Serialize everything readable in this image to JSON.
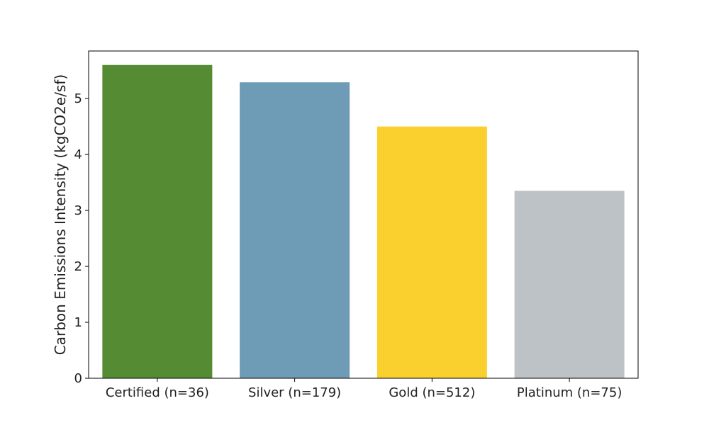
{
  "chart_data": {
    "type": "bar",
    "title": "",
    "xlabel": "",
    "ylabel": "Carbon Emissions Intensity (kgCO2e/sf)",
    "categories": [
      "Certified (n=36)",
      "Silver (n=179)",
      "Gold (n=512)",
      "Platinum (n=75)"
    ],
    "values": [
      5.6,
      5.29,
      4.5,
      3.35
    ],
    "colors": [
      "#548b33",
      "#6e9bb6",
      "#f9d02e",
      "#bcc2c5"
    ],
    "ylim": [
      0,
      5.85
    ],
    "yticks": [
      0,
      1,
      2,
      3,
      4,
      5
    ],
    "grid": false,
    "legend": "none"
  }
}
